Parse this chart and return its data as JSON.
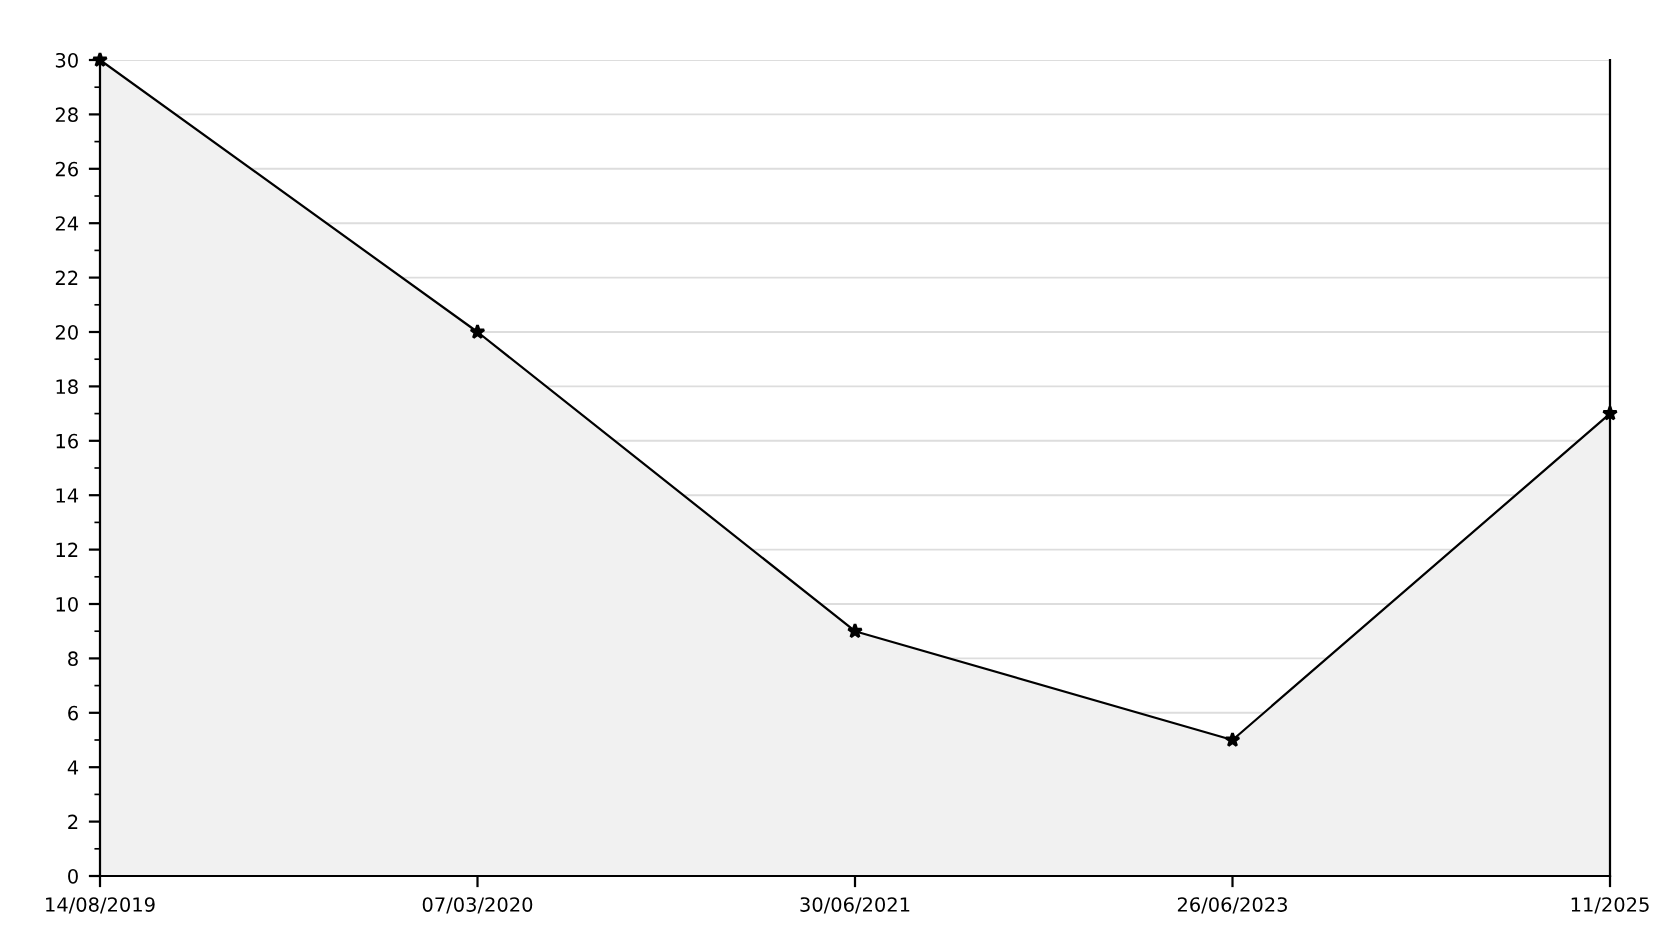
{
  "chart_data": {
    "type": "area",
    "categories": [
      "14/08/2019",
      "07/03/2020",
      "30/06/2021",
      "26/06/2023",
      "11/2025"
    ],
    "series": [
      {
        "color": "#000000",
        "values": [
          30,
          20,
          9,
          5,
          17
        ]
      }
    ],
    "ylim": [
      0,
      30
    ],
    "yticks": [
      0,
      2,
      4,
      6,
      8,
      10,
      12,
      14,
      16,
      18,
      20,
      22,
      24,
      26,
      28,
      30
    ],
    "grid": "y",
    "marker": "star",
    "line_style": "solid",
    "legend": false
  }
}
